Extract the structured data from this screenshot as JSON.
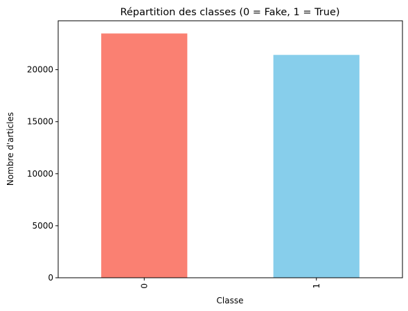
{
  "chart_data": {
    "type": "bar",
    "title": "Répartition des classes (0 = Fake, 1 = True)",
    "xlabel": "Classe",
    "ylabel": "Nombre d'articles",
    "categories": [
      "0",
      "1"
    ],
    "values": [
      23480,
      21420
    ],
    "colors": [
      "#fa8072",
      "#87ceeb"
    ],
    "ylim": [
      0,
      24700
    ],
    "yticks": [
      0,
      5000,
      10000,
      15000,
      20000
    ],
    "ytick_labels": [
      "0",
      "5000",
      "10000",
      "15000",
      "20000"
    ],
    "grid": false,
    "legend": "none"
  }
}
